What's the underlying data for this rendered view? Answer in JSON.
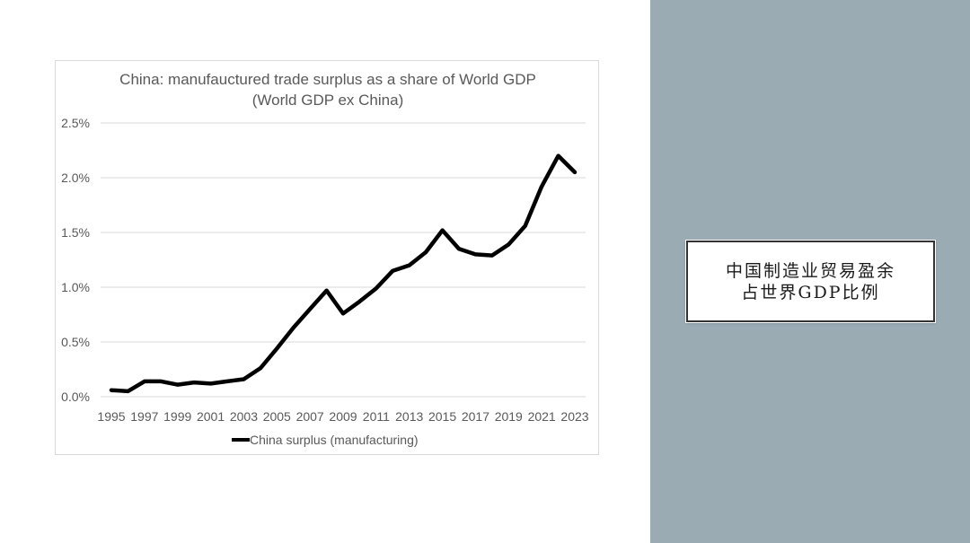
{
  "theme": {
    "right_panel_color": "#9aabb4",
    "line_color": "#000000",
    "grid_color": "#d9d9d9",
    "text_color": "#595959"
  },
  "caption": {
    "line1": "中国制造业贸易盈余",
    "line2": "占世界GDP比例"
  },
  "chart_data": {
    "type": "line",
    "title": "China: manufauctured trade surplus as a share of World GDP",
    "subtitle": "(World GDP ex China)",
    "xlabel": "",
    "ylabel": "",
    "x": [
      1995,
      1996,
      1997,
      1998,
      1999,
      2000,
      2001,
      2002,
      2003,
      2004,
      2005,
      2006,
      2007,
      2008,
      2009,
      2010,
      2011,
      2012,
      2013,
      2014,
      2015,
      2016,
      2017,
      2018,
      2019,
      2020,
      2021,
      2022,
      2023
    ],
    "x_tick_labels": [
      "1995",
      "1997",
      "1999",
      "2001",
      "2003",
      "2005",
      "2007",
      "2009",
      "2011",
      "2013",
      "2015",
      "2017",
      "2019",
      "2021",
      "2023"
    ],
    "y_tick_labels": [
      "0.0%",
      "0.5%",
      "1.0%",
      "1.5%",
      "2.0%",
      "2.5%"
    ],
    "ylim": [
      0,
      2.5
    ],
    "grid": true,
    "legend_position": "bottom",
    "series": [
      {
        "name": "China surplus (manufacturing)",
        "color": "#000000",
        "values": [
          0.06,
          0.05,
          0.14,
          0.14,
          0.11,
          0.13,
          0.12,
          0.14,
          0.16,
          0.26,
          0.44,
          0.63,
          0.8,
          0.97,
          0.76,
          0.87,
          0.99,
          1.15,
          1.2,
          1.32,
          1.52,
          1.35,
          1.3,
          1.29,
          1.39,
          1.56,
          1.92,
          2.2,
          2.05
        ]
      }
    ]
  }
}
